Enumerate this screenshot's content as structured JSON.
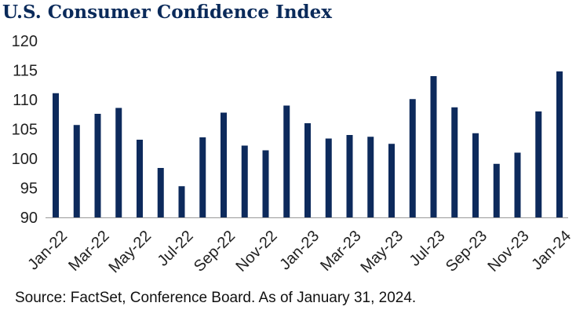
{
  "title": "U.S. Consumer Confidence Index",
  "source": "Source: FactSet, Conference Board. As of January 31, 2024.",
  "colors": {
    "bar": "#0d2a5c",
    "axis": "#999999",
    "title": "#0a2a5a"
  },
  "chart_data": {
    "type": "bar",
    "title": "U.S. Consumer Confidence Index",
    "xlabel": "",
    "ylabel": "",
    "ylim": [
      90,
      120
    ],
    "yticks": [
      90,
      95,
      100,
      105,
      110,
      115,
      120
    ],
    "grid": false,
    "legend": "none",
    "categories": [
      "Jan-22",
      "Feb-22",
      "Mar-22",
      "Apr-22",
      "May-22",
      "Jun-22",
      "Jul-22",
      "Aug-22",
      "Sep-22",
      "Oct-22",
      "Nov-22",
      "Dec-22",
      "Jan-23",
      "Feb-23",
      "Mar-23",
      "Apr-23",
      "May-23",
      "Jun-23",
      "Jul-23",
      "Aug-23",
      "Sep-23",
      "Oct-23",
      "Nov-23",
      "Dec-23",
      "Jan-24"
    ],
    "x_tick_labels": [
      "Jan-22",
      "Mar-22",
      "May-22",
      "Jul-22",
      "Sep-22",
      "Nov-22",
      "Jan-23",
      "Mar-23",
      "May-23",
      "Jul-23",
      "Sep-23",
      "Nov-23",
      "Jan-24"
    ],
    "values": [
      111.1,
      105.7,
      107.6,
      108.6,
      103.2,
      98.4,
      95.3,
      103.6,
      107.8,
      102.2,
      101.4,
      109.0,
      106.0,
      103.4,
      104.0,
      103.7,
      102.5,
      110.1,
      114.0,
      108.7,
      104.3,
      99.1,
      101.0,
      108.0,
      114.8
    ]
  }
}
